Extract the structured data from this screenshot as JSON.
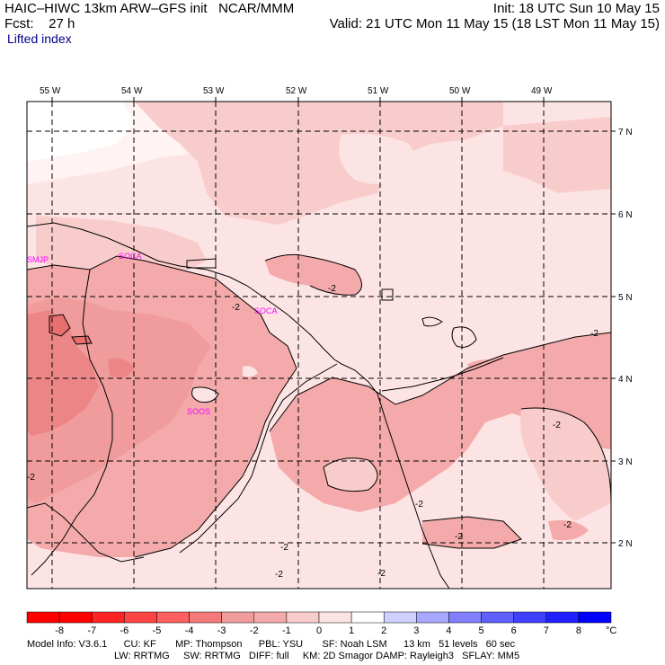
{
  "header": {
    "model_title": "HAIC–HIWC 13km ARW–GFS init   NCAR/MMM",
    "forecast_label": "Fcst:    27 h",
    "field_name": "Lifted index",
    "init_text": "Init: 18 UTC Sun 10 May 15",
    "valid_text": "Valid: 21 UTC Mon 11 May 15 (18 LST Mon 11 May 15)"
  },
  "map": {
    "longitude_labels": [
      "55 W",
      "54 W",
      "53 W",
      "52 W",
      "51 W",
      "50 W",
      "49 W"
    ],
    "latitude_labels": [
      "7 N",
      "6 N",
      "5 N",
      "4 N",
      "3 N",
      "2 N"
    ],
    "contour_labels": [
      "-2",
      "-2",
      "-2",
      "-2",
      "-2",
      "-2",
      "-2",
      "-2",
      "-2",
      "-2",
      "-2"
    ],
    "stations": [
      "SMJP",
      "SOCA",
      "SOOS",
      "SOCA"
    ],
    "fill_colors": {
      "le_minus4": "#ee8a8a",
      "minus4_minus3": "#f19c9c",
      "minus3_minus2": "#f4aaaa",
      "minus2_minus1": "#f9cccc",
      "minus1_0": "#fde4e4",
      "zero_1": "#ffffff",
      "one_2": "#d0d0ff"
    }
  },
  "colorbar": {
    "labels": [
      "-8",
      "-7",
      "-6",
      "-5",
      "-4",
      "-3",
      "-2",
      "-1",
      "0",
      "1",
      "2",
      "3",
      "4",
      "5",
      "6",
      "7",
      "8"
    ],
    "unit": "°C",
    "colors": [
      "#ff0000",
      "#ff2424",
      "#ff4444",
      "#ff6060",
      "#f47a7a",
      "#f19c9c",
      "#f4aaaa",
      "#f9cccc",
      "#fde4e4",
      "#ffffff",
      "#d0d0ff",
      "#a8a8ff",
      "#8080ff",
      "#6060ff",
      "#4040ff",
      "#2020ff",
      "#0000ff"
    ]
  },
  "model_info": {
    "line1": "Model Info: V3.6.1      CU: KF       MP: Thompson      PBL: YSU       SF: Noah LSM      13 km   51 levels   60 sec",
    "line2": "LW: RRTMG     SW: RRTMG   DIFF: full     KM: 2D Smagor DAMP: Rayleigh3   SFLAY: MM5"
  }
}
